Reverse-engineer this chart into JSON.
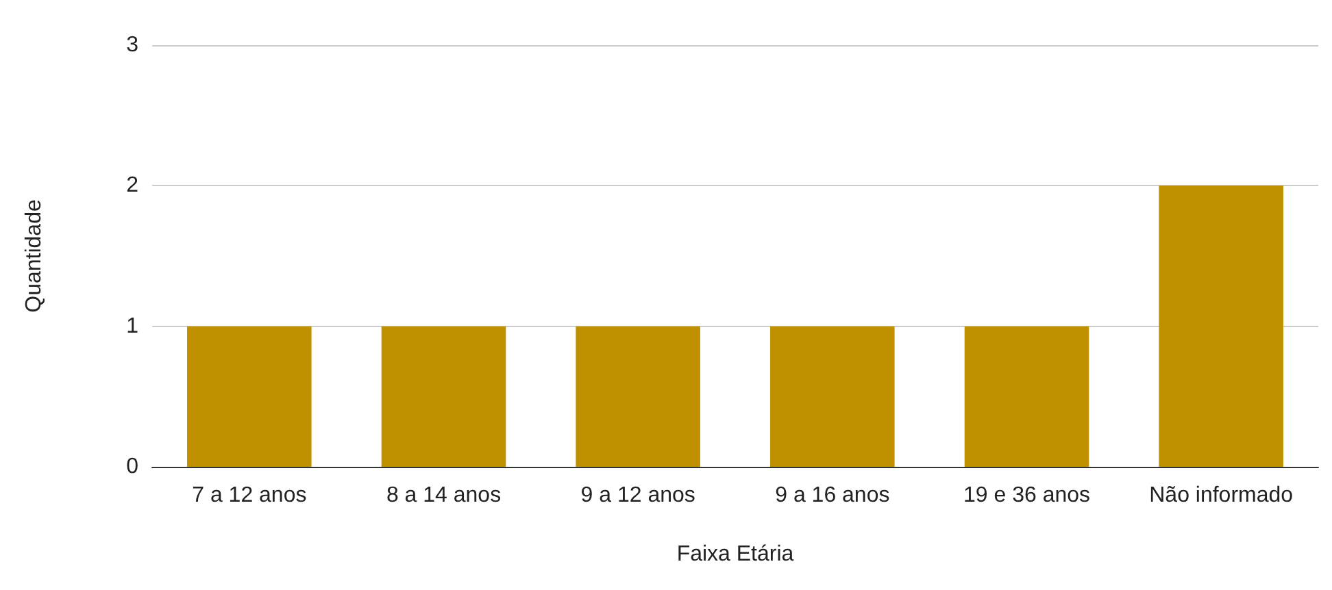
{
  "chart_data": {
    "type": "bar",
    "xlabel": "Faixa Etária",
    "ylabel": "Quantidade",
    "categories": [
      "7 a 12 anos",
      "8 a 14 anos",
      "9 a 12 anos",
      "9 a 16 anos",
      "19 e 36 anos",
      "Não informado"
    ],
    "values": [
      1,
      1,
      1,
      1,
      1,
      2
    ],
    "color": "#bf9000",
    "ylim": [
      0,
      3
    ],
    "yticks": [
      0,
      1,
      2,
      3
    ],
    "grid": "y"
  }
}
